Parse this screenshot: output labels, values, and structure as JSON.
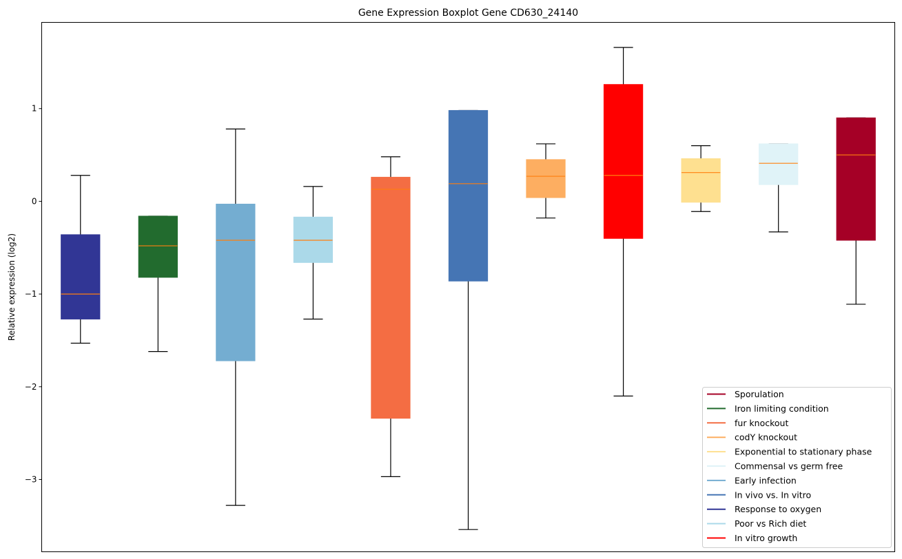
{
  "chart_data": {
    "type": "boxplot",
    "title": "Gene Expression Boxplot Gene CD630_24140",
    "xlabel": "",
    "ylabel": "Relative expression (log2)",
    "ylim": [
      -3.78,
      1.93
    ],
    "yticks": [
      1,
      0,
      -1,
      -2,
      -3
    ],
    "ytick_labels": [
      "1",
      "0",
      "−1",
      "−2",
      "−3"
    ],
    "xticks_visible": false,
    "grid": false,
    "legend_position": "lower-right",
    "median_color": "#ff7f0e",
    "series": [
      {
        "name": "Response to oxygen",
        "color": "#313695",
        "whislo": -1.53,
        "q1": -1.27,
        "median": -1.0,
        "q3": -0.36,
        "whishi": 0.28
      },
      {
        "name": "Iron limiting condition",
        "color": "#226b2e",
        "whislo": -1.62,
        "q1": -0.82,
        "median": -0.48,
        "q3": -0.16,
        "whishi": -0.16
      },
      {
        "name": "Early infection",
        "color": "#74add1",
        "whislo": -3.28,
        "q1": -1.72,
        "median": -0.42,
        "q3": -0.03,
        "whishi": 0.78
      },
      {
        "name": "Poor vs Rich diet",
        "color": "#abd9e9",
        "whislo": -1.27,
        "q1": -0.66,
        "median": -0.42,
        "q3": -0.17,
        "whishi": 0.16
      },
      {
        "name": "fur knockout",
        "color": "#f46d43",
        "whislo": -2.97,
        "q1": -2.34,
        "median": 0.13,
        "q3": 0.26,
        "whishi": 0.48
      },
      {
        "name": "In vivo vs. In vitro",
        "color": "#4575b4",
        "whislo": -3.54,
        "q1": -0.86,
        "median": 0.19,
        "q3": 0.98,
        "whishi": 0.98
      },
      {
        "name": "codY knockout",
        "color": "#fdae61",
        "whislo": -0.18,
        "q1": 0.04,
        "median": 0.27,
        "q3": 0.45,
        "whishi": 0.62
      },
      {
        "name": "In vitro growth",
        "color": "#ff0000",
        "whislo": -2.1,
        "q1": -0.4,
        "median": 0.28,
        "q3": 1.26,
        "whishi": 1.66
      },
      {
        "name": "Exponential to stationary phase",
        "color": "#fee090",
        "whislo": -0.11,
        "q1": -0.01,
        "median": 0.31,
        "q3": 0.46,
        "whishi": 0.6
      },
      {
        "name": "Commensal vs germ free",
        "color": "#e0f3f8",
        "whislo": -0.33,
        "q1": 0.18,
        "median": 0.41,
        "q3": 0.62,
        "whishi": 0.62
      },
      {
        "name": "Sporulation",
        "color": "#a50026",
        "whislo": -1.11,
        "q1": -0.42,
        "median": 0.5,
        "q3": 0.9,
        "whishi": 0.9
      }
    ],
    "legend": [
      {
        "label": "Sporulation",
        "color": "#a50026"
      },
      {
        "label": "Iron limiting condition",
        "color": "#226b2e"
      },
      {
        "label": "fur knockout",
        "color": "#f46d43"
      },
      {
        "label": "codY knockout",
        "color": "#fdae61"
      },
      {
        "label": "Exponential to stationary phase",
        "color": "#fee090"
      },
      {
        "label": "Commensal vs germ free",
        "color": "#e0f3f8"
      },
      {
        "label": "Early infection",
        "color": "#74add1"
      },
      {
        "label": "In vivo vs. In vitro",
        "color": "#4575b4"
      },
      {
        "label": "Response to oxygen",
        "color": "#313695"
      },
      {
        "label": "Poor vs Rich diet",
        "color": "#abd9e9"
      },
      {
        "label": "In vitro growth",
        "color": "#ff0000"
      }
    ]
  }
}
